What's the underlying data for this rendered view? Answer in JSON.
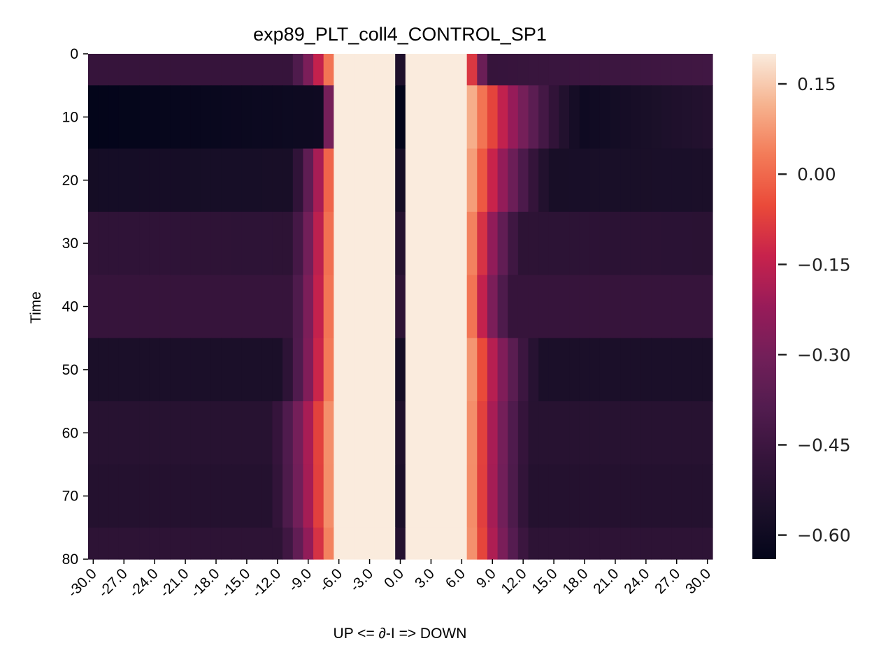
{
  "chart_data": {
    "type": "heatmap",
    "title": "exp89_PLT_coll4_CONTROL_SP1",
    "xlabel": "UP <= ∂-I => DOWN",
    "ylabel": "Time",
    "x_tick_labels": [
      "-30.0",
      "-27.0",
      "-24.0",
      "-21.0",
      "-18.0",
      "-15.0",
      "-12.0",
      "-9.0",
      "-6.0",
      "-3.0",
      "0.0",
      "3.0",
      "6.0",
      "9.0",
      "12.0",
      "15.0",
      "18.0",
      "21.0",
      "24.0",
      "27.0",
      "30.0"
    ],
    "y_tick_labels": [
      "0",
      "10",
      "20",
      "30",
      "40",
      "50",
      "60",
      "70",
      "80"
    ],
    "x_range": [
      -30,
      30
    ],
    "y_range": [
      0,
      80
    ],
    "x_columns": 61,
    "row_edges": [
      0,
      5,
      15,
      25,
      35,
      45,
      55,
      65,
      75,
      80
    ],
    "colormap": "rocket",
    "colorbar": {
      "vmin": -0.64,
      "vmax": 0.2,
      "tick_values": [
        0.15,
        0.0,
        -0.15,
        -0.3,
        -0.45,
        -0.6
      ],
      "tick_labels": [
        "0.15",
        "0.00",
        "−0.15",
        "−0.30",
        "−0.45",
        "−0.60"
      ]
    },
    "rows": [
      {
        "left": -0.47,
        "right": -0.44,
        "bg": -0.47,
        "c0": -0.55,
        "left_rise_x": -11,
        "right_fall_x": 9
      },
      {
        "left": -0.64,
        "right": -0.53,
        "bg": -0.6,
        "c0": -0.64,
        "left_rise_x": -8,
        "right_fall_x": 18
      },
      {
        "left": -0.58,
        "right": -0.56,
        "bg": -0.57,
        "c0": -0.58,
        "left_rise_x": -11,
        "right_fall_x": 15
      },
      {
        "left": -0.49,
        "right": -0.51,
        "bg": -0.5,
        "c0": -0.53,
        "left_rise_x": -11,
        "right_fall_x": 12
      },
      {
        "left": -0.47,
        "right": -0.47,
        "bg": -0.47,
        "c0": -0.5,
        "left_rise_x": -11,
        "right_fall_x": 11
      },
      {
        "left": -0.56,
        "right": -0.56,
        "bg": -0.56,
        "c0": -0.58,
        "left_rise_x": -12,
        "right_fall_x": 14
      },
      {
        "left": -0.52,
        "right": -0.52,
        "bg": -0.52,
        "c0": -0.55,
        "left_rise_x": -13,
        "right_fall_x": 13
      },
      {
        "left": -0.53,
        "right": -0.53,
        "bg": -0.53,
        "c0": -0.56,
        "left_rise_x": -13,
        "right_fall_x": 13
      },
      {
        "left": -0.5,
        "right": -0.5,
        "bg": -0.5,
        "c0": -0.53,
        "left_rise_x": -12,
        "right_fall_x": 13
      }
    ]
  }
}
